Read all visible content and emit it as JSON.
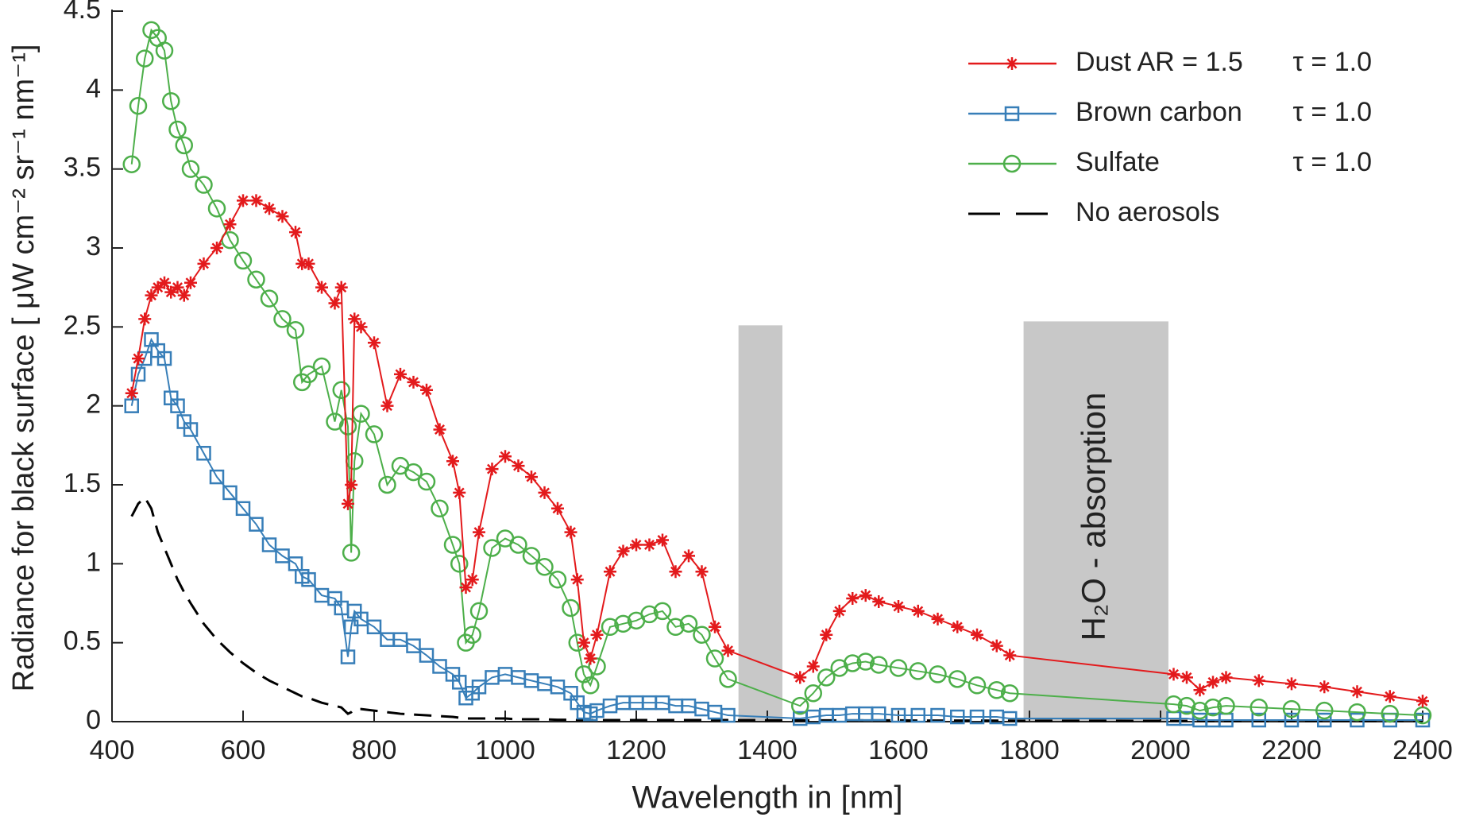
{
  "chart_data": {
    "type": "line",
    "xlabel": "Wavelength in [nm]",
    "ylabel": "Radiance for black surface [ μW cm⁻² sr⁻¹ nm⁻¹]",
    "xlim": [
      400,
      2400
    ],
    "ylim": [
      0,
      4.5
    ],
    "xticks": [
      400,
      600,
      800,
      1000,
      1200,
      1400,
      1600,
      1800,
      2000,
      2200,
      2400
    ],
    "yticks": [
      0,
      0.5,
      1,
      1.5,
      2,
      2.5,
      3,
      3.5,
      4,
      4.5
    ],
    "legend_position": "upper right",
    "shaded_regions": [
      {
        "x0": 1356,
        "x1": 1423,
        "top": 2.51,
        "color": "#c8c8c8"
      },
      {
        "x0": 1791,
        "x1": 2012,
        "top": 2.535,
        "color": "#c8c8c8",
        "annotation": "H₂O - absorption"
      }
    ],
    "x": [
      430,
      440,
      450,
      460,
      470,
      480,
      490,
      500,
      510,
      520,
      540,
      560,
      580,
      600,
      620,
      640,
      660,
      680,
      690,
      700,
      720,
      740,
      750,
      760,
      765,
      770,
      780,
      800,
      820,
      840,
      860,
      880,
      900,
      920,
      930,
      940,
      950,
      960,
      980,
      1000,
      1020,
      1040,
      1060,
      1080,
      1100,
      1110,
      1120,
      1130,
      1140,
      1160,
      1180,
      1200,
      1220,
      1240,
      1260,
      1280,
      1300,
      1320,
      1340,
      1450,
      1470,
      1490,
      1510,
      1530,
      1550,
      1570,
      1600,
      1630,
      1660,
      1690,
      1720,
      1750,
      1770,
      2020,
      2040,
      2060,
      2080,
      2100,
      2150,
      2200,
      2250,
      2300,
      2350,
      2400
    ],
    "series": [
      {
        "name": "Dust AR = 1.5",
        "note": "τ = 1.0",
        "color": "#e31a1c",
        "marker": "asterisk",
        "values": [
          2.08,
          2.3,
          2.55,
          2.7,
          2.75,
          2.78,
          2.72,
          2.75,
          2.7,
          2.78,
          2.9,
          3.0,
          3.15,
          3.3,
          3.3,
          3.25,
          3.2,
          3.1,
          2.9,
          2.9,
          2.75,
          2.65,
          2.75,
          1.38,
          1.5,
          2.55,
          2.5,
          2.4,
          2.0,
          2.2,
          2.15,
          2.1,
          1.85,
          1.65,
          1.45,
          0.85,
          0.9,
          1.2,
          1.6,
          1.68,
          1.62,
          1.55,
          1.45,
          1.35,
          1.2,
          0.9,
          0.5,
          0.4,
          0.55,
          0.95,
          1.08,
          1.12,
          1.12,
          1.15,
          0.95,
          1.05,
          0.95,
          0.6,
          0.45,
          0.28,
          0.35,
          0.55,
          0.7,
          0.78,
          0.8,
          0.76,
          0.73,
          0.7,
          0.65,
          0.6,
          0.55,
          0.48,
          0.42,
          0.3,
          0.28,
          0.2,
          0.25,
          0.28,
          0.26,
          0.24,
          0.22,
          0.19,
          0.16,
          0.13
        ]
      },
      {
        "name": "Brown carbon",
        "note": "τ = 1.0",
        "color": "#377eb8",
        "marker": "square",
        "values": [
          2.0,
          2.2,
          2.3,
          2.42,
          2.35,
          2.3,
          2.05,
          2.0,
          1.9,
          1.85,
          1.7,
          1.55,
          1.45,
          1.35,
          1.25,
          1.12,
          1.05,
          1.0,
          0.92,
          0.9,
          0.8,
          0.78,
          0.72,
          0.41,
          0.6,
          0.7,
          0.65,
          0.6,
          0.52,
          0.52,
          0.48,
          0.42,
          0.35,
          0.3,
          0.25,
          0.15,
          0.18,
          0.22,
          0.28,
          0.3,
          0.28,
          0.26,
          0.24,
          0.22,
          0.18,
          0.12,
          0.06,
          0.05,
          0.07,
          0.1,
          0.12,
          0.12,
          0.12,
          0.12,
          0.1,
          0.1,
          0.08,
          0.06,
          0.04,
          0.02,
          0.03,
          0.04,
          0.04,
          0.05,
          0.05,
          0.05,
          0.04,
          0.04,
          0.04,
          0.03,
          0.03,
          0.03,
          0.02,
          0.02,
          0.02,
          0.01,
          0.01,
          0.01,
          0.01,
          0.01,
          0.01,
          0.01,
          0.01,
          0.01
        ]
      },
      {
        "name": "Sulfate",
        "note": "τ = 1.0",
        "color": "#4daf4a",
        "marker": "circle",
        "values": [
          3.53,
          3.9,
          4.2,
          4.38,
          4.33,
          4.25,
          3.93,
          3.75,
          3.65,
          3.5,
          3.4,
          3.25,
          3.05,
          2.92,
          2.8,
          2.68,
          2.55,
          2.48,
          2.15,
          2.2,
          2.25,
          1.9,
          2.1,
          1.87,
          1.07,
          1.65,
          1.95,
          1.82,
          1.5,
          1.62,
          1.58,
          1.52,
          1.35,
          1.12,
          1.0,
          0.5,
          0.55,
          0.7,
          1.1,
          1.16,
          1.12,
          1.05,
          0.98,
          0.9,
          0.72,
          0.5,
          0.3,
          0.23,
          0.35,
          0.6,
          0.62,
          0.64,
          0.68,
          0.7,
          0.6,
          0.62,
          0.55,
          0.4,
          0.27,
          0.1,
          0.18,
          0.28,
          0.34,
          0.37,
          0.38,
          0.36,
          0.34,
          0.32,
          0.3,
          0.27,
          0.23,
          0.2,
          0.18,
          0.11,
          0.1,
          0.07,
          0.09,
          0.1,
          0.09,
          0.08,
          0.07,
          0.06,
          0.05,
          0.04
        ]
      },
      {
        "name": "No aerosols",
        "color": "#000000",
        "marker": "none",
        "dash": true,
        "values": [
          1.3,
          1.38,
          1.42,
          1.35,
          1.2,
          1.1,
          1.0,
          0.9,
          0.82,
          0.75,
          0.62,
          0.52,
          0.44,
          0.37,
          0.31,
          0.26,
          0.22,
          0.18,
          0.16,
          0.15,
          0.12,
          0.1,
          0.09,
          0.05,
          0.06,
          0.08,
          0.08,
          0.07,
          0.06,
          0.05,
          0.045,
          0.04,
          0.035,
          0.03,
          0.025,
          0.02,
          0.02,
          0.02,
          0.02,
          0.02,
          0.015,
          0.015,
          0.015,
          0.012,
          0.012,
          0.01,
          0.01,
          0.01,
          0.01,
          0.01,
          0.01,
          0.01,
          0.01,
          0.01,
          0.01,
          0.01,
          0.01,
          0.01,
          0.01,
          0.008,
          0.008,
          0.008,
          0.008,
          0.008,
          0.008,
          0.008,
          0.008,
          0.007,
          0.007,
          0.007,
          0.007,
          0.006,
          0.006,
          0.005,
          0.005,
          0.005,
          0.005,
          0.005,
          0.005,
          0.005,
          0.005,
          0.005,
          0.005,
          0.005
        ]
      }
    ]
  }
}
